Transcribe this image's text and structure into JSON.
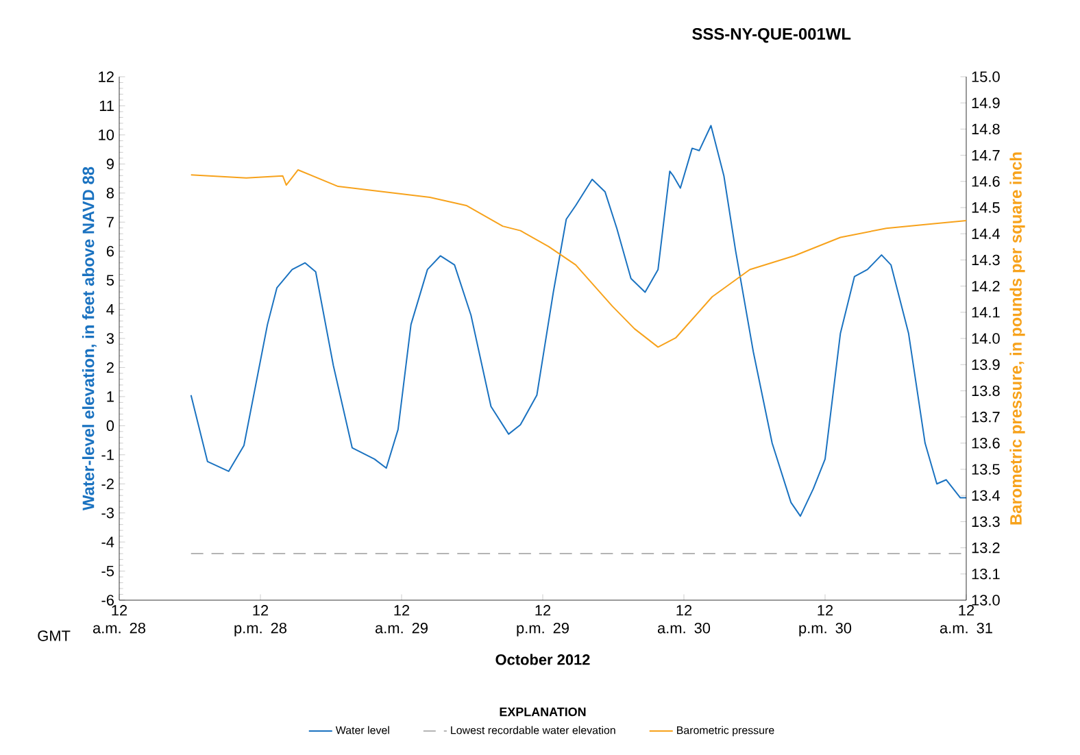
{
  "chart_data": {
    "type": "line",
    "title": "SSS-NY-QUE-001WL",
    "xlabel": "October 2012",
    "ylabel": "Water-level  elevation, in feet above NAVD 88",
    "y2label": "Barometric pressure, in pounds per square inch",
    "legend_title": "EXPLANATION",
    "annotations": [
      "GMT"
    ],
    "xlim": [
      "2012-10-28T00:00",
      "2012-10-31T00:00"
    ],
    "xticks": [
      {
        "value": "2012-10-28T00:00",
        "label": "12 a.m. 28"
      },
      {
        "value": "2012-10-28T12:00",
        "label": "12 p.m. 28"
      },
      {
        "value": "2012-10-29T00:00",
        "label": "12 a.m. 29"
      },
      {
        "value": "2012-10-29T12:00",
        "label": "12 p.m. 29"
      },
      {
        "value": "2012-10-30T00:00",
        "label": "12 a.m. 30"
      },
      {
        "value": "2012-10-30T12:00",
        "label": "12 p.m. 30"
      },
      {
        "value": "2012-10-31T00:00",
        "label": "12 a.m. 31"
      }
    ],
    "ylim": [
      -6,
      12
    ],
    "yticks": [
      -6,
      -5,
      -4,
      -3,
      -2,
      -1,
      0,
      1,
      2,
      3,
      4,
      5,
      6,
      7,
      8,
      9,
      10,
      11,
      12
    ],
    "y2lim": [
      13.0,
      15.0
    ],
    "y2ticks": [
      {
        "value": 13.0,
        "label": "13.0"
      },
      13.1,
      13.2,
      13.3,
      13.4,
      13.5,
      13.6,
      13.7,
      13.8,
      13.9,
      {
        "value": 14.0,
        "label": "14.0"
      },
      14.1,
      14.2,
      14.3,
      14.4,
      14.5,
      14.6,
      14.7,
      14.8,
      14.9,
      {
        "value": 15.0,
        "label": "15.0"
      }
    ],
    "grid": false,
    "legend": "bottom",
    "marker": "none",
    "series": [
      {
        "name": "Water level",
        "color": "#1a72c0",
        "line_style": "solid",
        "x": [
          "2012-10-28T06:06",
          "2012-10-28T07:30",
          "2012-10-28T09:18",
          "2012-10-28T10:36",
          "2012-10-28T12:36",
          "2012-10-28T13:24",
          "2012-10-28T14:42",
          "2012-10-28T15:48",
          "2012-10-28T16:42",
          "2012-10-28T18:12",
          "2012-10-28T19:48",
          "2012-10-28T21:42",
          "2012-10-28T22:42",
          "2012-10-28T23:42",
          "2012-10-29T00:48",
          "2012-10-29T02:12",
          "2012-10-29T03:18",
          "2012-10-29T04:30",
          "2012-10-29T05:54",
          "2012-10-29T07:36",
          "2012-10-29T09:06",
          "2012-10-29T10:06",
          "2012-10-29T11:30",
          "2012-10-29T12:54",
          "2012-10-29T14:00",
          "2012-10-29T14:48",
          "2012-10-29T16:12",
          "2012-10-29T17:18",
          "2012-10-29T18:18",
          "2012-10-29T19:30",
          "2012-10-29T20:42",
          "2012-10-29T21:48",
          "2012-10-29T22:48",
          "2012-10-29T23:06",
          "2012-10-29T23:42",
          "2012-10-30T00:42",
          "2012-10-30T01:18",
          "2012-10-30T02:18",
          "2012-10-30T03:24",
          "2012-10-30T04:24",
          "2012-10-30T05:54",
          "2012-10-30T07:30",
          "2012-10-30T09:06",
          "2012-10-30T09:54",
          "2012-10-30T11:00",
          "2012-10-30T12:00",
          "2012-10-30T13:18",
          "2012-10-30T14:30",
          "2012-10-30T15:36",
          "2012-10-30T16:48",
          "2012-10-30T17:36",
          "2012-10-30T19:06",
          "2012-10-30T20:30",
          "2012-10-30T21:30",
          "2012-10-30T22:18",
          "2012-10-30T23:30",
          "2012-10-31T00:00"
        ],
        "values": [
          1.05,
          -1.23,
          -1.57,
          -0.68,
          3.48,
          4.74,
          5.37,
          5.6,
          5.29,
          2.07,
          -0.76,
          -1.15,
          -1.46,
          -0.13,
          3.48,
          5.37,
          5.84,
          5.53,
          3.8,
          0.66,
          -0.29,
          0.03,
          1.05,
          4.59,
          7.1,
          7.57,
          8.47,
          8.04,
          6.78,
          5.06,
          4.59,
          5.37,
          8.75,
          8.59,
          8.17,
          9.54,
          9.46,
          10.32,
          8.59,
          6.0,
          2.54,
          -0.6,
          -2.64,
          -3.11,
          -2.17,
          -1.15,
          3.17,
          5.13,
          5.37,
          5.87,
          5.53,
          3.17,
          -0.6,
          -2.0,
          -1.86,
          -2.48,
          -2.48
        ]
      },
      {
        "name": "Lowest recordable water elevation",
        "color": "#b4b4b4",
        "line_style": "dashed",
        "x": [
          "2012-10-28T06:06",
          "2012-10-31T00:00"
        ],
        "values": [
          -4.4,
          -4.4
        ]
      },
      {
        "name": "Barometric pressure",
        "color": "#f7a21b",
        "line_style": "solid",
        "axis": "y2",
        "x": [
          "2012-10-28T06:06",
          "2012-10-28T10:48",
          "2012-10-28T13:54",
          "2012-10-28T14:12",
          "2012-10-28T15:12",
          "2012-10-28T18:36",
          "2012-10-28T22:30",
          "2012-10-29T02:24",
          "2012-10-29T05:30",
          "2012-10-29T08:36",
          "2012-10-29T10:06",
          "2012-10-29T12:30",
          "2012-10-29T14:48",
          "2012-10-29T17:54",
          "2012-10-29T19:48",
          "2012-10-29T21:48",
          "2012-10-29T23:18",
          "2012-10-30T02:24",
          "2012-10-30T05:36",
          "2012-10-30T09:24",
          "2012-10-30T13:18",
          "2012-10-30T17:12",
          "2012-10-30T21:06",
          "2012-10-31T00:00"
        ],
        "values": [
          14.625,
          14.613,
          14.621,
          14.586,
          14.644,
          14.581,
          14.56,
          14.539,
          14.508,
          14.429,
          14.412,
          14.351,
          14.281,
          14.124,
          14.037,
          13.967,
          14.002,
          14.159,
          14.263,
          14.316,
          14.386,
          14.421,
          14.438,
          14.45
        ]
      }
    ]
  }
}
